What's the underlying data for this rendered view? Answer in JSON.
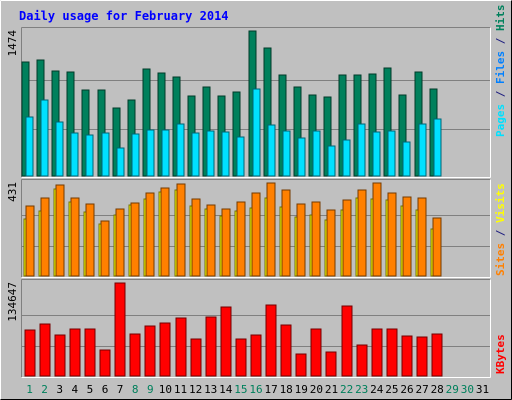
{
  "chart_data": [
    {
      "type": "bar",
      "title": "Daily usage for February 2014",
      "ylabel_top": "1474",
      "categories": [
        "1",
        "2",
        "3",
        "4",
        "5",
        "6",
        "7",
        "8",
        "9",
        "10",
        "11",
        "12",
        "13",
        "14",
        "15",
        "16",
        "17",
        "18",
        "19",
        "20",
        "21",
        "22",
        "23",
        "24",
        "25",
        "26",
        "27",
        "28",
        "29",
        "30",
        "31"
      ],
      "weekend_days": [
        "1",
        "2",
        "8",
        "9",
        "15",
        "16",
        "22",
        "23",
        "29",
        "30"
      ],
      "ymax": 1474,
      "side_label": [
        {
          "text": "Pages",
          "color": "#00e0ff"
        },
        {
          "text": " / ",
          "color": "#202080"
        },
        {
          "text": "Files",
          "color": "#0080ff"
        },
        {
          "text": " / ",
          "color": "#202080"
        },
        {
          "text": "Hits",
          "color": "#00805c"
        }
      ],
      "series": [
        {
          "name": "Hits",
          "color": "#00805c",
          "values": [
            1160,
            1175,
            1070,
            1055,
            870,
            875,
            690,
            770,
            1090,
            1045,
            1010,
            810,
            900,
            815,
            855,
            1470,
            1300,
            1030,
            900,
            825,
            800,
            1030,
            1030,
            1040,
            1100,
            825,
            1060,
            880,
            0,
            0,
            0
          ]
        },
        {
          "name": "Files",
          "color": "#0080ff",
          "values": [
            0,
            0,
            0,
            0,
            0,
            0,
            0,
            0,
            0,
            0,
            0,
            0,
            0,
            0,
            0,
            0,
            0,
            0,
            0,
            0,
            0,
            0,
            0,
            0,
            0,
            0,
            0,
            0,
            0,
            0,
            0
          ]
        },
        {
          "name": "Pages",
          "color": "#00e0ff",
          "values": [
            600,
            770,
            545,
            440,
            415,
            440,
            280,
            430,
            470,
            470,
            525,
            440,
            460,
            450,
            395,
            880,
            520,
            455,
            385,
            460,
            305,
            370,
            530,
            450,
            455,
            350,
            525,
            575,
            0,
            0,
            0
          ]
        }
      ]
    },
    {
      "type": "bar",
      "ylabel_top": "431",
      "ymax": 431,
      "side_label": [
        {
          "text": "Sites",
          "color": "#ff8000"
        },
        {
          "text": " / ",
          "color": "#202080"
        },
        {
          "text": "Visits",
          "color": "#ffff00"
        }
      ],
      "series": [
        {
          "name": "Visits",
          "color": "#ffff00",
          "values": [
            265,
            300,
            405,
            345,
            295,
            240,
            285,
            330,
            355,
            390,
            400,
            325,
            310,
            280,
            300,
            315,
            360,
            320,
            275,
            285,
            260,
            305,
            360,
            355,
            350,
            325,
            305,
            220,
            0,
            0,
            0
          ]
        },
        {
          "name": "Sites",
          "color": "#ff8000",
          "values": [
            325,
            360,
            420,
            360,
            335,
            255,
            310,
            340,
            385,
            410,
            425,
            355,
            330,
            310,
            345,
            385,
            430,
            400,
            335,
            345,
            305,
            350,
            400,
            430,
            385,
            365,
            360,
            270,
            0,
            0,
            0
          ]
        }
      ]
    },
    {
      "type": "bar",
      "ylabel_top": "134647",
      "ymax": 134647,
      "side_label": [
        {
          "text": "KBytes",
          "color": "#ff0000"
        }
      ],
      "series": [
        {
          "name": "KBytes",
          "color": "#ff0000",
          "values": [
            66500,
            75500,
            59500,
            68000,
            68000,
            37500,
            134000,
            61000,
            72500,
            76500,
            84000,
            53000,
            85500,
            100000,
            54000,
            60000,
            103000,
            74000,
            31500,
            68000,
            34500,
            101000,
            45500,
            68000,
            68500,
            58000,
            57000,
            60500,
            0,
            0,
            0
          ]
        }
      ]
    }
  ]
}
